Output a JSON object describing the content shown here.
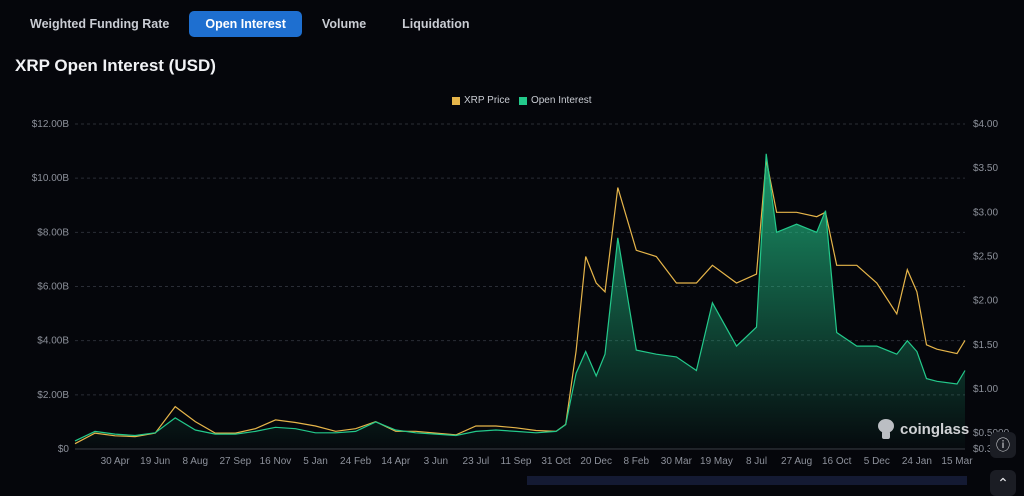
{
  "tabs": [
    {
      "label": "Weighted Funding Rate"
    },
    {
      "label": "Open Interest",
      "active": true
    },
    {
      "label": "Volume"
    },
    {
      "label": "Liquidation"
    }
  ],
  "brand": "coinglass",
  "colors": {
    "accent": "#1e6fd0",
    "price": "#e6b54a",
    "oi": "#23c98b",
    "background": "#05060b"
  },
  "chart_data": {
    "type": "line",
    "title": "XRP Open Interest (USD)",
    "legend": {
      "placement": "top-center",
      "items": [
        "XRP Price",
        "Open Interest"
      ]
    },
    "grid": true,
    "x_range": [
      "2023-03-11",
      "2026-03-25"
    ],
    "y_left": {
      "min": 0,
      "max": 12,
      "unit": "B USD",
      "ticks": [
        {
          "v": 0,
          "label": "$0"
        },
        {
          "v": 2,
          "label": "$2.00B"
        },
        {
          "v": 4,
          "label": "$4.00B"
        },
        {
          "v": 6,
          "label": "$6.00B"
        },
        {
          "v": 8,
          "label": "$8.00B"
        },
        {
          "v": 10,
          "label": "$10.00B"
        },
        {
          "v": 12,
          "label": "$12.00B"
        }
      ]
    },
    "y_right": {
      "min": 0.32,
      "max": 4,
      "unit": "USD",
      "ticks": [
        {
          "v": 0.32,
          "label": "$0.32"
        },
        {
          "v": 0.5,
          "label": "$0.5000"
        },
        {
          "v": 1,
          "label": "$1.00"
        },
        {
          "v": 1.5,
          "label": "$1.50"
        },
        {
          "v": 2,
          "label": "$2.00"
        },
        {
          "v": 2.5,
          "label": "$2.50"
        },
        {
          "v": 3,
          "label": "$3.00"
        },
        {
          "v": 3.5,
          "label": "$3.50"
        },
        {
          "v": 4,
          "label": "$4.00"
        }
      ]
    },
    "x_ticks": [
      {
        "label": "30 Apr",
        "date": "2023-04-30"
      },
      {
        "label": "19 Jun",
        "date": "2023-06-19"
      },
      {
        "label": "8 Aug",
        "date": "2023-08-08"
      },
      {
        "label": "27 Sep",
        "date": "2023-09-27"
      },
      {
        "label": "16 Nov",
        "date": "2023-11-16"
      },
      {
        "label": "5 Jan",
        "date": "2024-01-05"
      },
      {
        "label": "24 Feb",
        "date": "2024-02-24"
      },
      {
        "label": "14 Apr",
        "date": "2024-04-14"
      },
      {
        "label": "3 Jun",
        "date": "2024-06-03"
      },
      {
        "label": "23 Jul",
        "date": "2024-07-23"
      },
      {
        "label": "11 Sep",
        "date": "2024-09-11"
      },
      {
        "label": "31 Oct",
        "date": "2024-10-31"
      },
      {
        "label": "20 Dec",
        "date": "2024-12-20"
      },
      {
        "label": "8 Feb",
        "date": "2025-02-08"
      },
      {
        "label": "30 Mar",
        "date": "2025-03-30"
      },
      {
        "label": "19 May",
        "date": "2025-05-19"
      },
      {
        "label": "8 Jul",
        "date": "2025-07-08"
      },
      {
        "label": "27 Aug",
        "date": "2025-08-27"
      },
      {
        "label": "16 Oct",
        "date": "2025-10-16"
      },
      {
        "label": "5 Dec",
        "date": "2025-12-05"
      },
      {
        "label": "24 Jan",
        "date": "2026-01-24"
      },
      {
        "label": "15 Mar",
        "date": "2026-03-15"
      }
    ],
    "x": [
      "2023-03-11",
      "2023-04-05",
      "2023-04-30",
      "2023-05-25",
      "2023-06-19",
      "2023-07-14",
      "2023-08-08",
      "2023-09-02",
      "2023-09-27",
      "2023-10-22",
      "2023-11-16",
      "2023-12-11",
      "2024-01-05",
      "2024-01-30",
      "2024-02-24",
      "2024-03-20",
      "2024-04-14",
      "2024-05-09",
      "2024-06-03",
      "2024-06-28",
      "2024-07-23",
      "2024-08-17",
      "2024-09-11",
      "2024-10-06",
      "2024-10-31",
      "2024-11-12",
      "2024-11-25",
      "2024-12-07",
      "2024-12-20",
      "2024-12-31",
      "2025-01-16",
      "2025-02-08",
      "2025-03-05",
      "2025-03-30",
      "2025-04-24",
      "2025-05-14",
      "2025-06-13",
      "2025-07-08",
      "2025-07-20",
      "2025-08-02",
      "2025-08-27",
      "2025-09-21",
      "2025-10-02",
      "2025-10-16",
      "2025-11-10",
      "2025-12-05",
      "2025-12-30",
      "2026-01-12",
      "2026-01-24",
      "2026-02-05",
      "2026-02-18",
      "2026-03-15",
      "2026-03-25"
    ],
    "series": [
      {
        "name": "XRP Price",
        "axis": "right",
        "color": "#e6b54a",
        "values": [
          0.38,
          0.5,
          0.47,
          0.46,
          0.5,
          0.8,
          0.63,
          0.5,
          0.5,
          0.55,
          0.65,
          0.62,
          0.58,
          0.52,
          0.55,
          0.63,
          0.52,
          0.52,
          0.5,
          0.48,
          0.58,
          0.58,
          0.56,
          0.53,
          0.52,
          0.6,
          1.43,
          2.5,
          2.2,
          2.1,
          3.28,
          2.57,
          2.5,
          2.2,
          2.2,
          2.4,
          2.2,
          2.3,
          3.6,
          3.0,
          3.0,
          2.95,
          3.0,
          2.4,
          2.4,
          2.2,
          1.85,
          2.35,
          2.1,
          1.5,
          1.45,
          1.4,
          1.55
        ]
      },
      {
        "name": "Open Interest",
        "axis": "left",
        "color": "#23c98b",
        "values": [
          0.3,
          0.65,
          0.55,
          0.5,
          0.6,
          1.15,
          0.7,
          0.55,
          0.55,
          0.65,
          0.8,
          0.75,
          0.6,
          0.6,
          0.65,
          1.0,
          0.7,
          0.6,
          0.55,
          0.5,
          0.65,
          0.7,
          0.65,
          0.6,
          0.65,
          0.9,
          2.8,
          3.6,
          2.7,
          3.5,
          7.8,
          3.65,
          3.5,
          3.4,
          2.9,
          5.4,
          3.8,
          4.5,
          10.9,
          8.0,
          8.3,
          8.0,
          8.8,
          4.3,
          3.8,
          3.8,
          3.5,
          4.0,
          3.6,
          2.6,
          2.5,
          2.4,
          2.9
        ]
      }
    ]
  }
}
